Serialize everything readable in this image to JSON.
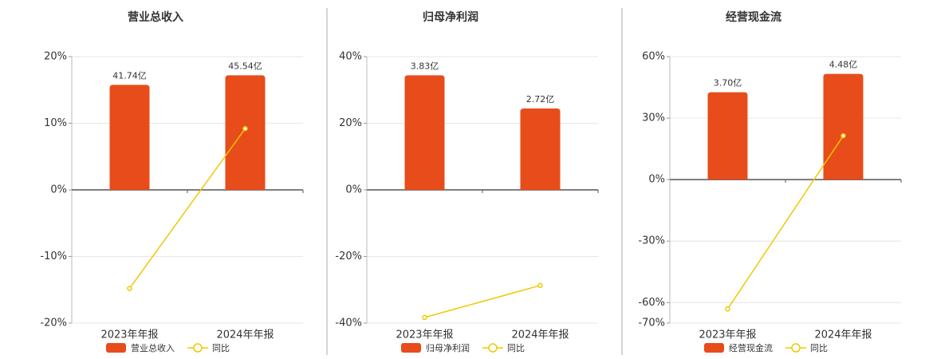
{
  "chart_data": [
    {
      "type": "bar",
      "title": "营业总收入",
      "categories": [
        "2023年年报",
        "2024年年报"
      ],
      "series": [
        {
          "name": "营业总收入",
          "color": "#e84c1b",
          "values": [
            41.74,
            45.54
          ],
          "value_labels": [
            "41.74亿",
            "45.54亿"
          ]
        },
        {
          "name": "同比",
          "type": "line",
          "color": "#f0c800",
          "values": [
            -14.8,
            9.2
          ]
        }
      ],
      "ylim": [
        -20,
        20
      ],
      "yticks": [
        {
          "value": 20,
          "label": "20%"
        },
        {
          "value": 10,
          "label": "10%"
        },
        {
          "value": 0,
          "label": "0%"
        },
        {
          "value": -10,
          "label": "-10%"
        },
        {
          "value": -20,
          "label": "-20%"
        }
      ],
      "grid": true
    },
    {
      "type": "bar",
      "title": "归母净利润",
      "categories": [
        "2023年年报",
        "2024年年报"
      ],
      "series": [
        {
          "name": "归母净利润",
          "color": "#e84c1b",
          "values": [
            3.83,
            2.72
          ],
          "value_labels": [
            "3.83亿",
            "2.72亿"
          ]
        },
        {
          "name": "同比",
          "type": "line",
          "color": "#f0c800",
          "values": [
            -38.3,
            -28.7
          ]
        }
      ],
      "ylim": [
        -40,
        40
      ],
      "yticks": [
        {
          "value": 40,
          "label": "40%"
        },
        {
          "value": 20,
          "label": "20%"
        },
        {
          "value": 0,
          "label": "0%"
        },
        {
          "value": -20,
          "label": "-20%"
        },
        {
          "value": -40,
          "label": "-40%"
        }
      ],
      "grid": true
    },
    {
      "type": "bar",
      "title": "经营现金流",
      "categories": [
        "2023年年报",
        "2024年年报"
      ],
      "series": [
        {
          "name": "经营现金流",
          "color": "#e84c1b",
          "values": [
            3.7,
            4.48
          ],
          "value_labels": [
            "3.70亿",
            "4.48亿"
          ]
        },
        {
          "name": "同比",
          "type": "line",
          "color": "#f0c800",
          "values": [
            -63.1,
            21.4
          ]
        }
      ],
      "ylim": [
        -70,
        60
      ],
      "yticks": [
        {
          "value": 60,
          "label": "60%"
        },
        {
          "value": 30,
          "label": "30%"
        },
        {
          "value": 0,
          "label": "0%"
        },
        {
          "value": -30,
          "label": "-30%"
        },
        {
          "value": -60,
          "label": "-60%"
        },
        {
          "value": -70,
          "label": "-70%"
        }
      ],
      "grid": true
    }
  ]
}
